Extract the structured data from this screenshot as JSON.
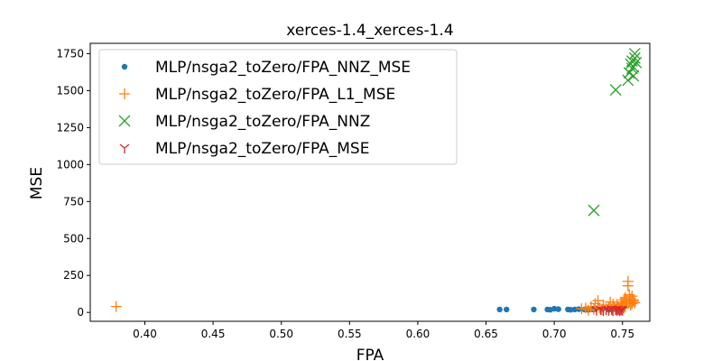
{
  "chart_data": {
    "type": "scatter",
    "title": "xerces-1.4_xerces-1.4",
    "xlabel": "FPA",
    "ylabel": "MSE",
    "xlim": [
      0.36,
      0.77
    ],
    "ylim": [
      -60,
      1820
    ],
    "xticks": [
      0.4,
      0.45,
      0.5,
      0.55,
      0.6,
      0.65,
      0.7,
      0.75
    ],
    "xtick_labels": [
      "0.40",
      "0.45",
      "0.50",
      "0.55",
      "0.60",
      "0.65",
      "0.70",
      "0.75"
    ],
    "yticks": [
      0,
      250,
      500,
      750,
      1000,
      1250,
      1500,
      1750
    ],
    "ytick_labels": [
      "0",
      "250",
      "500",
      "750",
      "1000",
      "1250",
      "1500",
      "1750"
    ],
    "grid": false,
    "legend_position": "upper-left",
    "series": [
      {
        "name": "MLP/nsga2_toZero/FPA_NNZ_MSE",
        "color": "#1f77b4",
        "marker": "dot",
        "points": [
          [
            0.66,
            20
          ],
          [
            0.665,
            20
          ],
          [
            0.685,
            20
          ],
          [
            0.695,
            20
          ],
          [
            0.697,
            18
          ],
          [
            0.7,
            25
          ],
          [
            0.703,
            22
          ],
          [
            0.71,
            20
          ],
          [
            0.712,
            18
          ],
          [
            0.715,
            20
          ],
          [
            0.718,
            22
          ],
          [
            0.722,
            20
          ],
          [
            0.725,
            18
          ],
          [
            0.728,
            20
          ],
          [
            0.73,
            22
          ],
          [
            0.735,
            20
          ],
          [
            0.74,
            18
          ],
          [
            0.745,
            20
          ],
          [
            0.75,
            20
          ]
        ]
      },
      {
        "name": "MLP/nsga2_toZero/FPA_L1_MSE",
        "color": "#ff7f0e",
        "marker": "plus",
        "points": [
          [
            0.379,
            40
          ],
          [
            0.72,
            25
          ],
          [
            0.723,
            30
          ],
          [
            0.725,
            15
          ],
          [
            0.727,
            40
          ],
          [
            0.729,
            20
          ],
          [
            0.73,
            60
          ],
          [
            0.732,
            80
          ],
          [
            0.733,
            30
          ],
          [
            0.735,
            20
          ],
          [
            0.736,
            50
          ],
          [
            0.738,
            25
          ],
          [
            0.74,
            35
          ],
          [
            0.741,
            70
          ],
          [
            0.742,
            20
          ],
          [
            0.744,
            40
          ],
          [
            0.745,
            25
          ],
          [
            0.746,
            55
          ],
          [
            0.747,
            30
          ],
          [
            0.748,
            20
          ],
          [
            0.749,
            45
          ],
          [
            0.75,
            60
          ],
          [
            0.751,
            30
          ],
          [
            0.752,
            100
          ],
          [
            0.753,
            80
          ],
          [
            0.754,
            210
          ],
          [
            0.754,
            180
          ],
          [
            0.755,
            120
          ],
          [
            0.755,
            70
          ],
          [
            0.756,
            90
          ],
          [
            0.756,
            50
          ],
          [
            0.757,
            110
          ],
          [
            0.757,
            60
          ],
          [
            0.758,
            75
          ],
          [
            0.758,
            85
          ],
          [
            0.759,
            65
          ],
          [
            0.752,
            40
          ],
          [
            0.751,
            85
          ],
          [
            0.749,
            70
          ],
          [
            0.743,
            55
          ]
        ]
      },
      {
        "name": "MLP/nsga2_toZero/FPA_NNZ",
        "color": "#2ca02c",
        "marker": "x",
        "points": [
          [
            0.729,
            690
          ],
          [
            0.745,
            1505
          ],
          [
            0.754,
            1570
          ],
          [
            0.755,
            1620
          ],
          [
            0.756,
            1680
          ],
          [
            0.757,
            1700
          ],
          [
            0.758,
            1660
          ],
          [
            0.759,
            1720
          ],
          [
            0.759,
            1750
          ],
          [
            0.758,
            1600
          ],
          [
            0.757,
            1650
          ],
          [
            0.76,
            1690
          ]
        ]
      },
      {
        "name": "MLP/nsga2_toZero/FPA_MSE",
        "color": "#d62728",
        "marker": "tri",
        "points": [
          [
            0.731,
            15
          ],
          [
            0.734,
            20
          ],
          [
            0.736,
            12
          ],
          [
            0.738,
            18
          ],
          [
            0.74,
            15
          ],
          [
            0.742,
            22
          ],
          [
            0.743,
            12
          ],
          [
            0.745,
            18
          ],
          [
            0.746,
            15
          ],
          [
            0.747,
            20
          ],
          [
            0.748,
            12
          ],
          [
            0.749,
            18
          ],
          [
            0.75,
            15
          ]
        ]
      }
    ]
  }
}
